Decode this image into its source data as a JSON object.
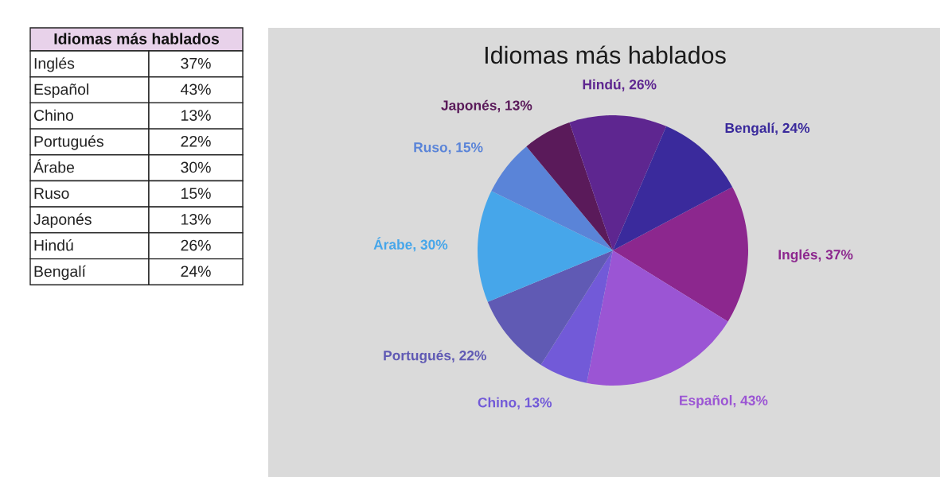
{
  "chart_data": [
    {
      "type": "other",
      "title": "Idiomas más hablados",
      "categories": [
        "Inglés",
        "Español",
        "Chino",
        "Portugués",
        "Árabe",
        "Ruso",
        "Japonés",
        "Hindú",
        "Bengalí"
      ],
      "values": [
        37,
        43,
        13,
        22,
        30,
        15,
        13,
        26,
        24
      ],
      "value_labels": [
        "37%",
        "43%",
        "13%",
        "22%",
        "30%",
        "15%",
        "13%",
        "26%",
        "24%"
      ]
    },
    {
      "type": "pie",
      "title": "Idiomas más hablados",
      "categories": [
        "Inglés, 37%",
        "Español, 43%",
        "Chino, 13%",
        "Portugués, 22%",
        "Árabe, 30%",
        "Ruso, 15%",
        "Japonés, 13%",
        "Hindú, 26%",
        "Bengalí, 24%"
      ],
      "values": [
        37,
        43,
        13,
        22,
        30,
        15,
        13,
        26,
        24
      ],
      "colors": [
        "#8c278e",
        "#9b55d4",
        "#725ad8",
        "#605ab4",
        "#46a6ea",
        "#5a84d8",
        "#5a1a5a",
        "#5e2690",
        "#3a2a9c"
      ]
    }
  ]
}
